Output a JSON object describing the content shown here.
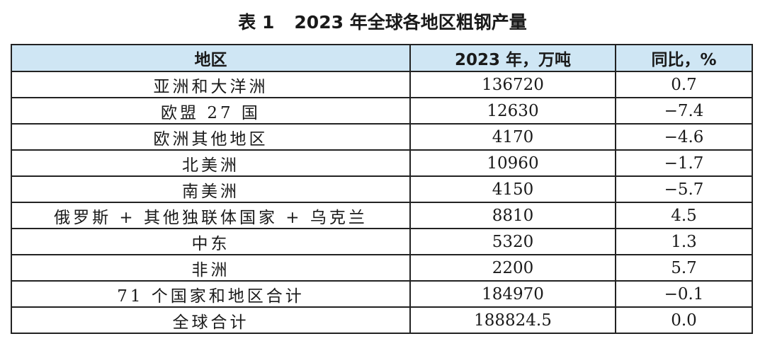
{
  "caption": {
    "number": "表 1",
    "title": "2023 年全球各地区粗钢产量"
  },
  "table": {
    "headers": [
      "地区",
      "2023 年，万吨",
      "同比，%"
    ],
    "rows": [
      {
        "region": "亚洲和大洋洲",
        "output": "136720",
        "yoy": "0.7"
      },
      {
        "region": "欧盟 27 国",
        "output": "12630",
        "yoy": "−7.4"
      },
      {
        "region": "欧洲其他地区",
        "output": "4170",
        "yoy": "−4.6"
      },
      {
        "region": "北美洲",
        "output": "10960",
        "yoy": "−1.7"
      },
      {
        "region": "南美洲",
        "output": "4150",
        "yoy": "−5.7"
      },
      {
        "region": "俄罗斯 + 其他独联体国家 + 乌克兰",
        "output": "8810",
        "yoy": "4.5"
      },
      {
        "region": "中东",
        "output": "5320",
        "yoy": "1.3"
      },
      {
        "region": "非洲",
        "output": "2200",
        "yoy": "5.7"
      },
      {
        "region": "71 个国家和地区合计",
        "output": "184970",
        "yoy": "−0.1"
      },
      {
        "region": "全球合计",
        "output": "188824.5",
        "yoy": "0.0"
      }
    ]
  }
}
